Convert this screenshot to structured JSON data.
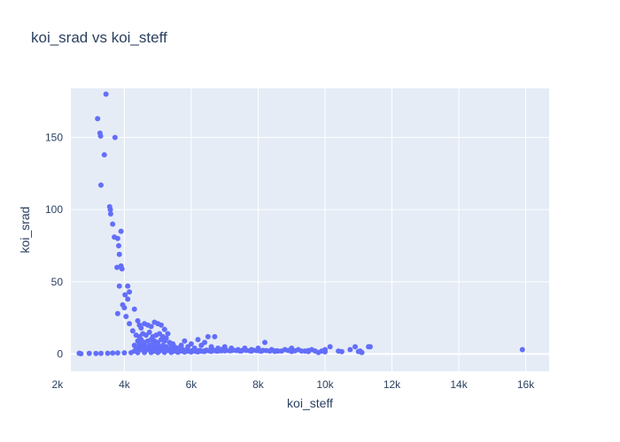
{
  "chart_data": {
    "type": "scatter",
    "title": "koi_srad vs koi_steff",
    "xlabel": "koi_steff",
    "ylabel": "koi_srad",
    "xlim": [
      2400,
      16700
    ],
    "ylim": [
      -12,
      184
    ],
    "x_ticks": [
      2000,
      4000,
      6000,
      8000,
      10000,
      12000,
      14000,
      16000
    ],
    "x_tick_labels": [
      "2k",
      "4k",
      "6k",
      "8k",
      "10k",
      "12k",
      "14k",
      "16k"
    ],
    "y_ticks": [
      0,
      50,
      100,
      150
    ],
    "y_tick_labels": [
      "0",
      "50",
      "100",
      "150"
    ],
    "grid": true,
    "marker_color": "#636efa",
    "plot_bg": "#e5ecf6",
    "points": [
      [
        3450,
        180
      ],
      [
        3200,
        163
      ],
      [
        3270,
        153
      ],
      [
        3290,
        151
      ],
      [
        3720,
        150
      ],
      [
        3400,
        138
      ],
      [
        3300,
        117
      ],
      [
        3560,
        102
      ],
      [
        3580,
        100
      ],
      [
        3590,
        97
      ],
      [
        3650,
        90
      ],
      [
        3900,
        85
      ],
      [
        3700,
        81
      ],
      [
        3800,
        80
      ],
      [
        3830,
        75
      ],
      [
        3850,
        69
      ],
      [
        3780,
        60
      ],
      [
        3900,
        61
      ],
      [
        3930,
        59
      ],
      [
        4100,
        47
      ],
      [
        3850,
        47
      ],
      [
        4150,
        43
      ],
      [
        4020,
        41
      ],
      [
        4100,
        38
      ],
      [
        3950,
        34
      ],
      [
        4000,
        32
      ],
      [
        4300,
        31
      ],
      [
        3800,
        28
      ],
      [
        4050,
        26
      ],
      [
        4150,
        21
      ],
      [
        4400,
        23
      ],
      [
        4450,
        20
      ],
      [
        4250,
        16
      ],
      [
        4500,
        18
      ],
      [
        4600,
        21
      ],
      [
        4700,
        20
      ],
      [
        4800,
        19
      ],
      [
        4900,
        22
      ],
      [
        5000,
        21
      ],
      [
        5100,
        20
      ],
      [
        5200,
        17
      ],
      [
        5300,
        14
      ],
      [
        4350,
        13
      ],
      [
        4450,
        12
      ],
      [
        4550,
        14
      ],
      [
        4650,
        13
      ],
      [
        4750,
        15
      ],
      [
        4850,
        12
      ],
      [
        4950,
        13
      ],
      [
        5050,
        14
      ],
      [
        5150,
        12
      ],
      [
        5250,
        11
      ],
      [
        4400,
        9
      ],
      [
        4500,
        10
      ],
      [
        4600,
        8
      ],
      [
        4700,
        9
      ],
      [
        4800,
        10
      ],
      [
        4900,
        9
      ],
      [
        5000,
        8
      ],
      [
        5100,
        10
      ],
      [
        5200,
        9
      ],
      [
        5350,
        8
      ],
      [
        5450,
        7
      ],
      [
        4300,
        6
      ],
      [
        4450,
        7
      ],
      [
        4550,
        6
      ],
      [
        4650,
        5
      ],
      [
        4750,
        6
      ],
      [
        4850,
        7
      ],
      [
        4950,
        6
      ],
      [
        5050,
        5
      ],
      [
        5150,
        6
      ],
      [
        5250,
        5
      ],
      [
        5400,
        6
      ],
      [
        5500,
        5
      ],
      [
        5600,
        4
      ],
      [
        5700,
        6
      ],
      [
        5800,
        9
      ],
      [
        5900,
        5
      ],
      [
        6000,
        7
      ],
      [
        6100,
        4
      ],
      [
        6200,
        10
      ],
      [
        6300,
        6
      ],
      [
        6400,
        8
      ],
      [
        6500,
        12
      ],
      [
        6600,
        5
      ],
      [
        6700,
        12
      ],
      [
        6800,
        4
      ],
      [
        6900,
        3
      ],
      [
        7000,
        5
      ],
      [
        7200,
        4
      ],
      [
        7400,
        3
      ],
      [
        7600,
        4
      ],
      [
        7800,
        3
      ],
      [
        8000,
        4
      ],
      [
        8200,
        8
      ],
      [
        8400,
        3
      ],
      [
        8600,
        2
      ],
      [
        8800,
        3
      ],
      [
        9000,
        4
      ],
      [
        9200,
        3
      ],
      [
        9400,
        2
      ],
      [
        9600,
        3
      ],
      [
        9800,
        1
      ],
      [
        10000,
        3
      ],
      [
        10150,
        5
      ],
      [
        10400,
        2
      ],
      [
        10750,
        3
      ],
      [
        10900,
        5
      ],
      [
        11050,
        2
      ],
      [
        11100,
        1
      ],
      [
        11300,
        5
      ],
      [
        11350,
        5
      ],
      [
        15900,
        3
      ],
      [
        2650,
        0.5
      ],
      [
        2700,
        0.2
      ],
      [
        2950,
        0.4
      ],
      [
        3150,
        0.3
      ],
      [
        3300,
        0.4
      ],
      [
        3500,
        0.5
      ],
      [
        3650,
        0.6
      ],
      [
        3800,
        0.7
      ],
      [
        4000,
        0.8
      ],
      [
        4200,
        0.9
      ],
      [
        4400,
        0.9
      ],
      [
        4600,
        1
      ],
      [
        4800,
        1
      ],
      [
        5000,
        1
      ],
      [
        5200,
        1.1
      ],
      [
        5400,
        1.1
      ],
      [
        5600,
        1.2
      ],
      [
        5800,
        1.3
      ],
      [
        6000,
        1.4
      ],
      [
        6200,
        1.5
      ],
      [
        6400,
        1.7
      ],
      [
        6600,
        1.8
      ],
      [
        6800,
        2
      ],
      [
        7000,
        2.2
      ],
      [
        7200,
        2.3
      ],
      [
        7500,
        2.1
      ],
      [
        7800,
        2
      ],
      [
        8100,
        1.9
      ],
      [
        8500,
        1.8
      ],
      [
        9000,
        1.7
      ],
      [
        9500,
        1.6
      ],
      [
        10000,
        1.5
      ],
      [
        10500,
        1.6
      ],
      [
        11000,
        1.7
      ]
    ],
    "band_points": [
      [
        4300,
        2
      ],
      [
        4350,
        4
      ],
      [
        4400,
        3
      ],
      [
        4450,
        5
      ],
      [
        4500,
        3
      ],
      [
        4550,
        4
      ],
      [
        4600,
        2
      ],
      [
        4650,
        4
      ],
      [
        4700,
        3
      ],
      [
        4750,
        5
      ],
      [
        4800,
        3
      ],
      [
        4850,
        4
      ],
      [
        4900,
        2
      ],
      [
        4950,
        3
      ],
      [
        5000,
        4
      ],
      [
        5050,
        2
      ],
      [
        5100,
        3
      ],
      [
        5150,
        4
      ],
      [
        5200,
        2
      ],
      [
        5250,
        3
      ],
      [
        5300,
        2.5
      ],
      [
        5350,
        3
      ],
      [
        5400,
        2
      ],
      [
        5450,
        3
      ],
      [
        5500,
        2
      ],
      [
        5550,
        2.5
      ],
      [
        5600,
        2
      ],
      [
        5650,
        2.5
      ],
      [
        5700,
        2
      ],
      [
        5750,
        3
      ],
      [
        5800,
        2
      ],
      [
        5850,
        2.5
      ],
      [
        5900,
        2
      ],
      [
        5950,
        1.8
      ],
      [
        6000,
        2
      ],
      [
        6050,
        2.5
      ],
      [
        6100,
        2
      ],
      [
        6150,
        1.7
      ],
      [
        6200,
        2
      ],
      [
        6250,
        2.5
      ],
      [
        6300,
        2
      ],
      [
        6350,
        1.8
      ],
      [
        6400,
        2.2
      ],
      [
        6450,
        2.6
      ],
      [
        6500,
        2.4
      ],
      [
        6550,
        2.1
      ],
      [
        6600,
        2.5
      ],
      [
        6650,
        2.8
      ],
      [
        6700,
        2.3
      ],
      [
        6750,
        2
      ],
      [
        6800,
        2.6
      ],
      [
        6850,
        2.4
      ],
      [
        6900,
        2.2
      ],
      [
        6950,
        2.7
      ],
      [
        7050,
        2.5
      ],
      [
        7150,
        2.2
      ],
      [
        7250,
        2.6
      ],
      [
        7350,
        2.4
      ],
      [
        7450,
        2.1
      ],
      [
        7550,
        2.7
      ],
      [
        7650,
        2.5
      ],
      [
        7750,
        2.2
      ],
      [
        7850,
        2.6
      ],
      [
        7950,
        2.3
      ],
      [
        8050,
        2.1
      ],
      [
        8150,
        2.5
      ],
      [
        8250,
        2.3
      ],
      [
        8350,
        2
      ],
      [
        8450,
        2.4
      ],
      [
        8550,
        2.2
      ],
      [
        8700,
        2
      ],
      [
        8900,
        2.4
      ],
      [
        9100,
        2.2
      ],
      [
        9300,
        2
      ],
      [
        9500,
        2.3
      ],
      [
        9700,
        2.1
      ],
      [
        9900,
        2
      ]
    ]
  }
}
